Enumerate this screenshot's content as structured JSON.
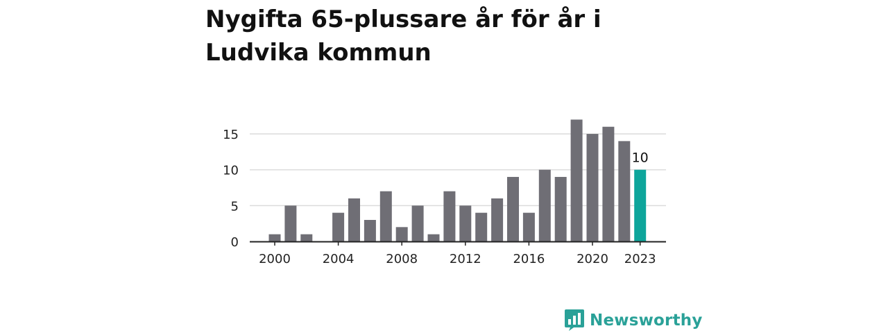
{
  "title": "Nygifta 65-plussare år för år i Ludvika kommun",
  "brand": {
    "name": "Newsworthy"
  },
  "colors": {
    "bar": "#6f6e75",
    "highlight": "#0ea59b",
    "grid": "#dcdcdc",
    "axis": "#222222",
    "brand": "#2aa198"
  },
  "chart_data": {
    "type": "bar",
    "x": [
      2000,
      2001,
      2002,
      2003,
      2004,
      2005,
      2006,
      2007,
      2008,
      2009,
      2010,
      2011,
      2012,
      2013,
      2014,
      2015,
      2016,
      2017,
      2018,
      2019,
      2020,
      2021,
      2022,
      2023
    ],
    "values": [
      1,
      5,
      1,
      0,
      4,
      6,
      3,
      7,
      2,
      5,
      1,
      7,
      5,
      4,
      6,
      9,
      4,
      10,
      9,
      17,
      15,
      16,
      14,
      10
    ],
    "x_tick_labels": [
      "2000",
      "2004",
      "2008",
      "2012",
      "2016",
      "2020",
      "2023"
    ],
    "y_ticks": [
      0,
      5,
      10,
      15
    ],
    "ylim": [
      0,
      17
    ],
    "grid": true,
    "highlight": {
      "x": 2023,
      "label": "10"
    }
  }
}
